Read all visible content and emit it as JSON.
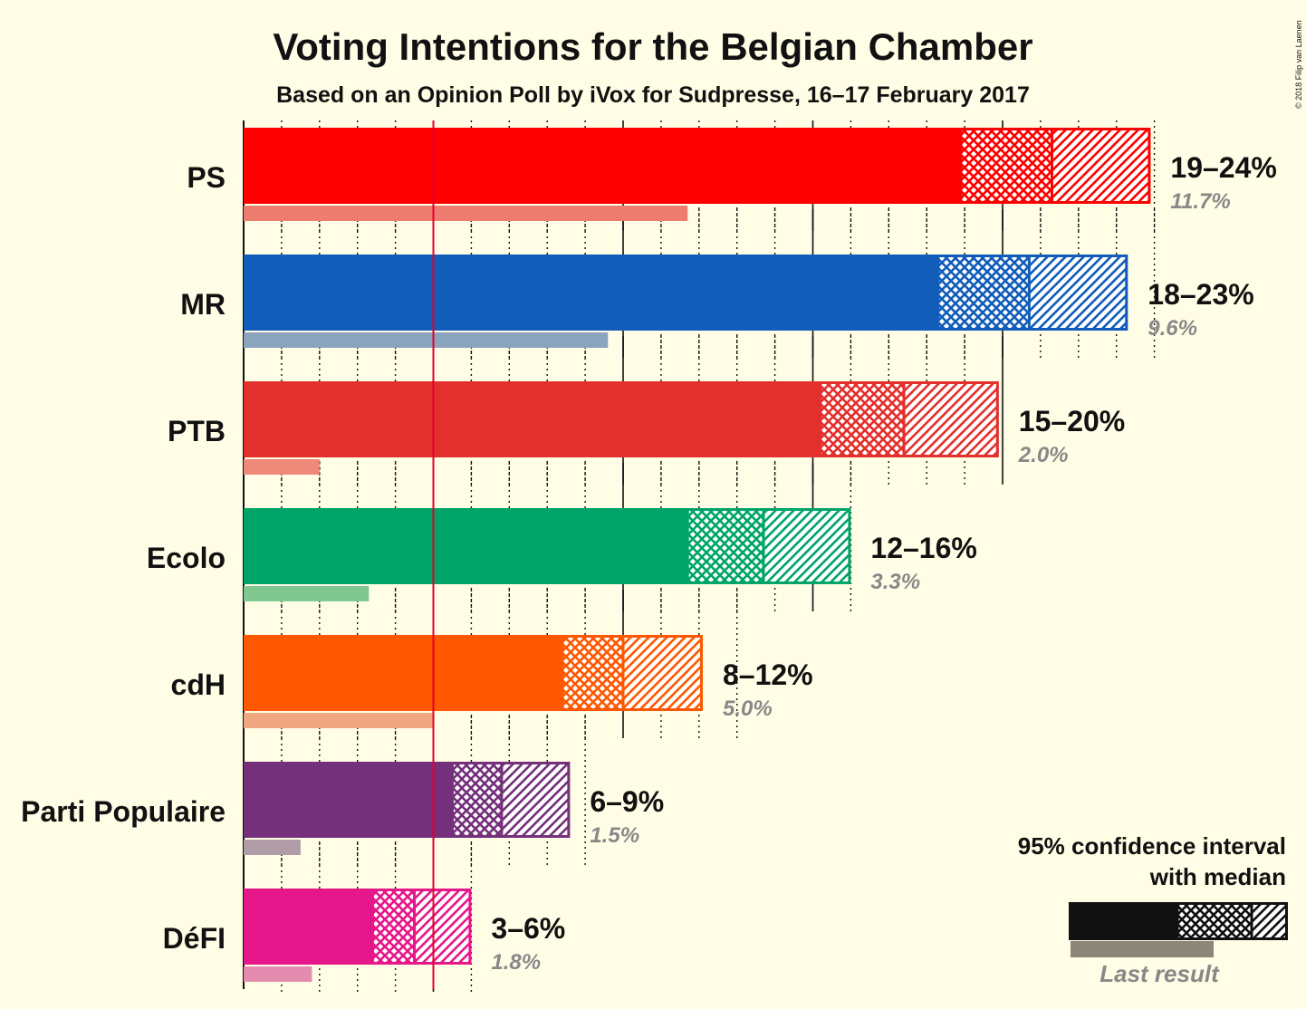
{
  "chart_data": {
    "type": "bar",
    "title": "Voting Intentions for the Belgian Chamber",
    "subtitle": "Based on an Opinion Poll by iVox for Sudpresse, 16–17 February 2017",
    "copyright": "© 2018 Filip van Laenen",
    "xlim": [
      0,
      25
    ],
    "threshold": 5,
    "parties": [
      {
        "name": "PS",
        "color": "#FF0000",
        "last_color": "#EE7C70",
        "ci_low": 18.9,
        "median": 21.3,
        "ci_high": 23.9,
        "range_label": "19–24%",
        "last": 11.7,
        "last_label": "11.7%"
      },
      {
        "name": "MR",
        "color": "#115DB9",
        "last_color": "#8AA4BD",
        "ci_low": 18.3,
        "median": 20.7,
        "ci_high": 23.3,
        "range_label": "18–23%",
        "last": 9.6,
        "last_label": "9.6%"
      },
      {
        "name": "PTB",
        "color": "#E3302C",
        "last_color": "#EE8878",
        "ci_low": 15.2,
        "median": 17.4,
        "ci_high": 19.9,
        "range_label": "15–20%",
        "last": 2.0,
        "last_label": "2.0%"
      },
      {
        "name": "Ecolo",
        "color": "#00A569",
        "last_color": "#80C890",
        "ci_low": 11.7,
        "median": 13.7,
        "ci_high": 16.0,
        "range_label": "12–16%",
        "last": 3.3,
        "last_label": "3.3%"
      },
      {
        "name": "cdH",
        "color": "#FF5800",
        "last_color": "#F0A880",
        "ci_low": 8.4,
        "median": 10.0,
        "ci_high": 12.1,
        "range_label": "8–12%",
        "last": 5.0,
        "last_label": "5.0%"
      },
      {
        "name": "Parti Populaire",
        "color": "#74307A",
        "last_color": "#B09CA6",
        "ci_low": 5.5,
        "median": 6.8,
        "ci_high": 8.6,
        "range_label": "6–9%",
        "last": 1.5,
        "last_label": "1.5%"
      },
      {
        "name": "DéFI",
        "color": "#E6178A",
        "last_color": "#E48CB0",
        "ci_low": 3.4,
        "median": 4.5,
        "ci_high": 6.0,
        "range_label": "3–6%",
        "last": 1.8,
        "last_label": "1.8%"
      }
    ],
    "legend": {
      "line1": "95% confidence interval",
      "line2": "with median",
      "last_result": "Last result",
      "color": "#111111",
      "last_color": "#8A8678"
    }
  }
}
